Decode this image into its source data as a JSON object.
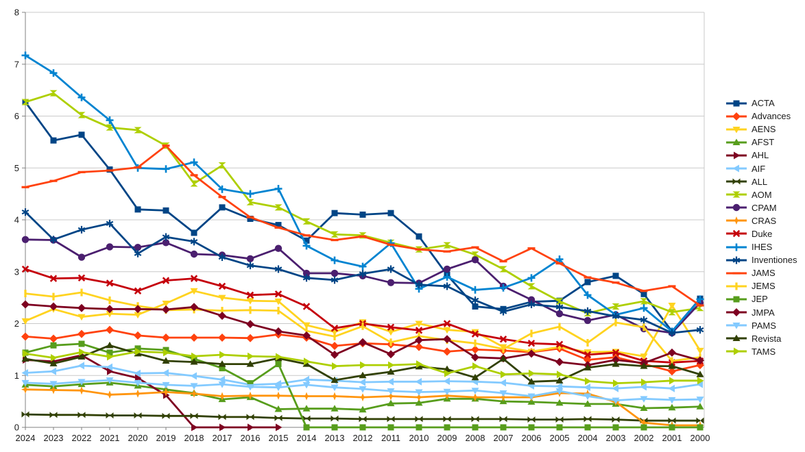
{
  "chart_data": {
    "type": "line",
    "title": "",
    "xlabel": "",
    "ylabel": "",
    "ylim": [
      0,
      8
    ],
    "y_ticks": [
      0,
      1,
      2,
      3,
      4,
      5,
      6,
      7,
      8
    ],
    "grid": "horizontal",
    "legend_position": "right",
    "x_categories": [
      "2024",
      "2023",
      "2022",
      "2021",
      "2020",
      "2019",
      "2018",
      "2017",
      "2016",
      "2015",
      "2014",
      "2013",
      "2012",
      "2011",
      "2010",
      "2009",
      "2008",
      "2007",
      "2006",
      "2005",
      "2004",
      "2003",
      "2002",
      "2001",
      "2000"
    ],
    "series": [
      {
        "name": "ACTA",
        "color": "#004586",
        "marker": "square",
        "values": [
          6.27,
          5.53,
          5.64,
          4.97,
          4.2,
          4.18,
          3.75,
          4.24,
          4.02,
          3.9,
          3.6,
          4.13,
          4.1,
          4.13,
          3.68,
          2.94,
          2.33,
          2.28,
          2.42,
          2.44,
          2.8,
          2.92,
          2.57,
          1.85,
          2.48
        ]
      },
      {
        "name": "Advances",
        "color": "#ff420e",
        "marker": "diamond",
        "values": [
          1.75,
          1.71,
          1.8,
          1.88,
          1.77,
          1.73,
          1.73,
          1.73,
          1.72,
          1.79,
          1.73,
          1.57,
          1.62,
          1.6,
          1.55,
          1.46,
          1.5,
          1.48,
          1.45,
          1.52,
          1.3,
          1.35,
          1.22,
          1.08,
          1.2
        ]
      },
      {
        "name": "AENS",
        "color": "#ffd320",
        "marker": "arrow-down",
        "values": [
          2.05,
          2.28,
          2.13,
          2.19,
          2.17,
          2.39,
          2.63,
          2.5,
          2.44,
          2.43,
          1.97,
          1.84,
          2.03,
          1.84,
          2.0,
          1.88,
          1.84,
          1.55,
          1.46,
          1.55,
          1.45,
          1.46,
          1.37,
          2.35,
          1.48
        ]
      },
      {
        "name": "AFST",
        "color": "#579d1c",
        "marker": "arrow-up",
        "values": [
          0.82,
          0.79,
          0.83,
          0.86,
          0.8,
          0.73,
          0.66,
          0.54,
          0.58,
          0.35,
          0.36,
          0.36,
          0.34,
          0.46,
          0.47,
          0.55,
          0.55,
          0.5,
          0.49,
          0.47,
          0.45,
          0.45,
          0.37,
          0.38,
          0.4
        ]
      },
      {
        "name": "AHL",
        "color": "#7e0021",
        "marker": "arrow-right",
        "values": [
          1.3,
          1.27,
          1.39,
          1.08,
          0.95,
          0.62,
          0,
          0,
          0,
          0,
          null,
          null,
          null,
          null,
          null,
          null,
          null,
          null,
          null,
          null,
          null,
          null,
          null,
          null,
          null
        ]
      },
      {
        "name": "AIF",
        "color": "#83caff",
        "marker": "arrow-left",
        "values": [
          1.05,
          1.08,
          1.19,
          1.16,
          1.04,
          1.05,
          0.99,
          0.92,
          0.82,
          0.84,
          0.92,
          0.9,
          0.87,
          0.88,
          0.88,
          0.89,
          0.88,
          0.86,
          0.8,
          0.79,
          0.77,
          0.75,
          0.78,
          0.75,
          0.83
        ]
      },
      {
        "name": "ALL",
        "color": "#314004",
        "marker": "bowtie",
        "values": [
          0.25,
          0.24,
          0.24,
          0.23,
          0.23,
          0.22,
          0.22,
          0.2,
          0.2,
          0.18,
          0.17,
          0.17,
          0.16,
          0.16,
          0.16,
          0.16,
          0.16,
          0.16,
          0.15,
          0.15,
          0.16,
          0.15,
          0.13,
          0.13,
          0.13
        ]
      },
      {
        "name": "AOM",
        "color": "#aecf00",
        "marker": "sandglass",
        "values": [
          6.27,
          6.44,
          6.02,
          5.78,
          5.73,
          5.43,
          4.7,
          5.05,
          4.34,
          4.24,
          3.97,
          3.72,
          3.7,
          3.56,
          3.43,
          3.51,
          3.33,
          3.05,
          2.72,
          2.43,
          2.2,
          2.33,
          2.43,
          2.22,
          2.3
        ]
      },
      {
        "name": "CPAM",
        "color": "#4b1f6f",
        "marker": "circle",
        "values": [
          3.62,
          3.61,
          3.28,
          3.48,
          3.47,
          3.56,
          3.34,
          3.32,
          3.25,
          3.45,
          2.97,
          2.97,
          2.92,
          2.79,
          2.78,
          3.05,
          3.23,
          2.72,
          2.46,
          2.19,
          2.06,
          2.17,
          1.9,
          1.82,
          2.4
        ]
      },
      {
        "name": "CRAS",
        "color": "#ff950e",
        "marker": "star4",
        "values": [
          0.73,
          0.72,
          0.71,
          0.63,
          0.65,
          0.68,
          0.65,
          0.6,
          0.61,
          0.61,
          0.6,
          0.6,
          0.58,
          0.6,
          0.58,
          0.61,
          0.58,
          0.58,
          0.58,
          0.66,
          0.65,
          0.49,
          0.09,
          0.04,
          0.04
        ]
      },
      {
        "name": "Duke",
        "color": "#c5000b",
        "marker": "x",
        "values": [
          3.05,
          2.87,
          2.88,
          2.78,
          2.63,
          2.83,
          2.87,
          2.72,
          2.55,
          2.57,
          2.33,
          1.91,
          2.0,
          1.93,
          1.87,
          2.0,
          1.8,
          1.7,
          1.62,
          1.6,
          1.4,
          1.44,
          1.28,
          1.25,
          1.28
        ]
      },
      {
        "name": "IHES",
        "color": "#0084d1",
        "marker": "plus",
        "values": [
          7.17,
          6.83,
          6.36,
          5.92,
          5.0,
          4.98,
          5.11,
          4.59,
          4.5,
          4.6,
          3.5,
          3.22,
          3.1,
          3.55,
          2.67,
          2.9,
          2.65,
          2.69,
          2.88,
          3.24,
          2.55,
          2.17,
          2.3,
          1.85,
          2.47
        ]
      },
      {
        "name": "Inventiones",
        "color": "#004586",
        "marker": "asterisk",
        "values": [
          4.15,
          3.62,
          3.81,
          3.93,
          3.35,
          3.67,
          3.58,
          3.28,
          3.12,
          3.05,
          2.88,
          2.84,
          2.96,
          3.05,
          2.75,
          2.72,
          2.45,
          2.23,
          2.37,
          2.32,
          2.24,
          2.14,
          2.07,
          1.82,
          1.88
        ]
      },
      {
        "name": "JAMS",
        "color": "#ff420e",
        "marker": "hbar",
        "values": [
          4.63,
          4.75,
          4.92,
          4.95,
          5.01,
          5.43,
          4.86,
          4.44,
          4.05,
          3.85,
          3.7,
          3.61,
          3.68,
          3.52,
          3.43,
          3.39,
          3.47,
          3.2,
          3.45,
          3.16,
          2.89,
          2.79,
          2.63,
          2.72,
          2.35
        ]
      },
      {
        "name": "JEMS",
        "color": "#ffd320",
        "marker": "vbar",
        "values": [
          2.58,
          2.52,
          2.6,
          2.45,
          2.34,
          2.26,
          2.27,
          2.25,
          2.26,
          2.25,
          1.86,
          1.75,
          1.95,
          1.64,
          1.76,
          1.68,
          1.62,
          1.51,
          1.81,
          1.94,
          1.63,
          2.02,
          1.93,
          1.28,
          1.35
        ]
      },
      {
        "name": "JEP",
        "color": "#579d1c",
        "marker": "square",
        "values": [
          1.44,
          1.58,
          1.61,
          1.44,
          1.52,
          1.49,
          1.32,
          1.14,
          0.85,
          1.22,
          0,
          0,
          0,
          0,
          0,
          0,
          0,
          0,
          0,
          0,
          0,
          0,
          0,
          0,
          0
        ]
      },
      {
        "name": "JMPA",
        "color": "#7e0021",
        "marker": "diamond",
        "values": [
          2.37,
          2.33,
          2.3,
          2.28,
          2.28,
          2.27,
          2.32,
          2.15,
          1.99,
          1.85,
          1.77,
          1.4,
          1.64,
          1.41,
          1.68,
          1.7,
          1.35,
          1.33,
          1.42,
          1.26,
          1.2,
          1.3,
          1.24,
          1.44,
          1.29
        ]
      },
      {
        "name": "PAMS",
        "color": "#83caff",
        "marker": "arrow-down",
        "values": [
          0.86,
          0.84,
          0.88,
          0.91,
          0.86,
          0.82,
          0.8,
          0.83,
          0.78,
          0.77,
          0.82,
          0.77,
          0.74,
          0.7,
          0.68,
          0.69,
          0.71,
          0.66,
          0.6,
          0.7,
          0.6,
          0.52,
          0.55,
          0.53,
          0.54
        ]
      },
      {
        "name": "Revista",
        "color": "#314004",
        "marker": "arrow-up",
        "values": [
          1.32,
          1.23,
          1.36,
          1.58,
          1.42,
          1.28,
          1.26,
          1.22,
          1.22,
          1.33,
          1.22,
          0.91,
          1.0,
          1.07,
          1.17,
          1.12,
          0.96,
          1.32,
          0.88,
          0.9,
          1.15,
          1.22,
          1.18,
          1.18,
          1.02
        ]
      },
      {
        "name": "TAMS",
        "color": "#aecf00",
        "marker": "arrow-right",
        "values": [
          1.42,
          1.34,
          1.45,
          1.36,
          1.46,
          1.44,
          1.37,
          1.4,
          1.37,
          1.36,
          1.27,
          1.18,
          1.2,
          1.2,
          1.22,
          1.04,
          1.18,
          1.02,
          1.04,
          1.02,
          0.89,
          0.85,
          0.87,
          0.9,
          0.9
        ]
      }
    ]
  },
  "style": {
    "background": "#ffffff",
    "gridline_color": "#c9c9c9",
    "axis_color": "#808080",
    "text_color": "#1a1a1a",
    "line_width": 2.8
  }
}
